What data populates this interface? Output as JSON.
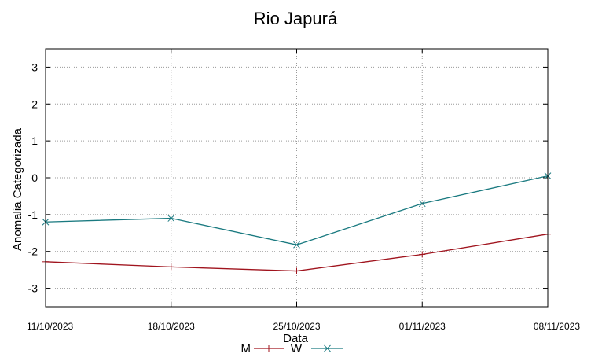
{
  "chart_data": {
    "type": "line",
    "title": "Rio Japurá",
    "xlabel": "Data",
    "ylabel": "Anomalia Categorizada",
    "categories": [
      "11/10/2023",
      "18/10/2023",
      "25/10/2023",
      "01/11/2023",
      "08/11/2023"
    ],
    "ylim": [
      -3.5,
      3.5
    ],
    "yticks": [
      3,
      2,
      1,
      0,
      -1,
      -2,
      -3
    ],
    "grid": true,
    "legend_position": "bottom-center",
    "series": [
      {
        "name": "M",
        "color": "#a0141e",
        "marker": "plus",
        "values": [
          -2.28,
          -2.42,
          -2.53,
          -2.08,
          -1.53
        ]
      },
      {
        "name": "W",
        "color": "#1a7a80",
        "marker": "x",
        "values": [
          -1.2,
          -1.1,
          -1.82,
          -0.7,
          0.05
        ]
      }
    ]
  }
}
